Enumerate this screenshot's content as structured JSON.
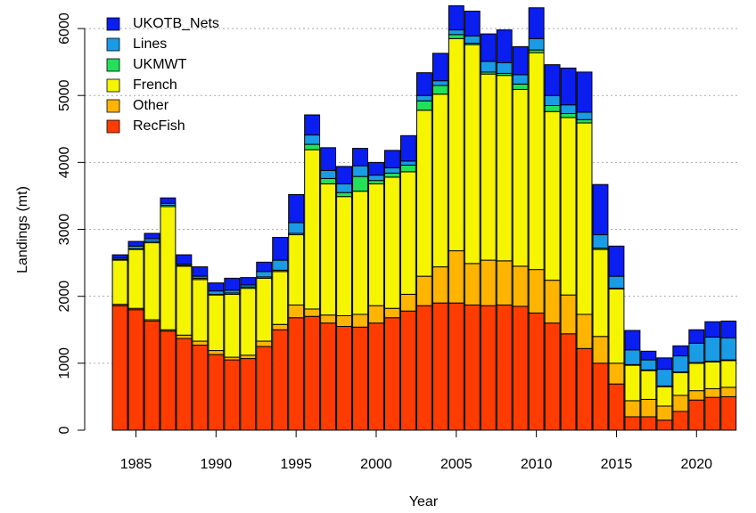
{
  "chart_data": {
    "type": "stacked_bar",
    "x_label": "Year",
    "y_label": "Landings (mt)",
    "x": [
      1984,
      1985,
      1986,
      1987,
      1988,
      1989,
      1990,
      1991,
      1992,
      1993,
      1994,
      1995,
      1996,
      1997,
      1998,
      1999,
      2000,
      2001,
      2002,
      2003,
      2004,
      2005,
      2006,
      2007,
      2008,
      2009,
      2010,
      2011,
      2012,
      2013,
      2014,
      2015,
      2016,
      2017,
      2018,
      2019,
      2020,
      2021,
      2022
    ],
    "xlim": [
      1981.8,
      2022.6
    ],
    "xticks": [
      1985,
      1990,
      1995,
      2000,
      2005,
      2010,
      2015,
      2020
    ],
    "ylim": [
      0,
      6360
    ],
    "yticks": [
      0,
      1000,
      2000,
      3000,
      4000,
      5000,
      6000
    ],
    "grid": true,
    "legend": "top-left",
    "series": [
      {
        "name": "RecFish",
        "color": "#ff3c00",
        "values": [
          1860,
          1800,
          1630,
          1480,
          1370,
          1270,
          1130,
          1050,
          1070,
          1250,
          1500,
          1680,
          1700,
          1600,
          1550,
          1540,
          1600,
          1680,
          1780,
          1860,
          1900,
          1900,
          1870,
          1860,
          1870,
          1850,
          1750,
          1600,
          1440,
          1220,
          1000,
          690,
          200,
          200,
          150,
          280,
          450,
          490,
          500
        ]
      },
      {
        "name": "Other",
        "color": "#ffb400",
        "values": [
          20,
          20,
          20,
          20,
          50,
          60,
          60,
          40,
          50,
          80,
          80,
          190,
          110,
          120,
          160,
          190,
          260,
          140,
          250,
          440,
          540,
          780,
          620,
          680,
          660,
          600,
          650,
          640,
          580,
          510,
          400,
          310,
          240,
          260,
          210,
          240,
          140,
          130,
          140
        ]
      },
      {
        "name": "French",
        "color": "#f5f500",
        "values": [
          660,
          880,
          1150,
          1840,
          1030,
          920,
          830,
          940,
          1000,
          940,
          790,
          1050,
          2380,
          1960,
          1780,
          1840,
          1820,
          1960,
          1830,
          2480,
          2580,
          3170,
          3270,
          2780,
          2770,
          2640,
          3240,
          2520,
          2650,
          2860,
          1300,
          1110,
          530,
          430,
          290,
          340,
          410,
          400,
          400
        ]
      },
      {
        "name": "UKMWT",
        "color": "#22e05a",
        "values": [
          10,
          10,
          20,
          20,
          10,
          20,
          10,
          20,
          20,
          20,
          20,
          20,
          80,
          80,
          60,
          220,
          50,
          60,
          100,
          140,
          130,
          60,
          20,
          30,
          30,
          80,
          40,
          90,
          60,
          50,
          20,
          10,
          10,
          10,
          10,
          10,
          10,
          10,
          10
        ]
      },
      {
        "name": "Lines",
        "color": "#1a9be6",
        "values": [
          20,
          40,
          40,
          30,
          20,
          30,
          50,
          40,
          30,
          80,
          150,
          160,
          140,
          120,
          130,
          160,
          80,
          80,
          60,
          80,
          70,
          70,
          110,
          160,
          160,
          140,
          170,
          150,
          130,
          110,
          200,
          180,
          220,
          150,
          250,
          240,
          290,
          360,
          330
        ]
      },
      {
        "name": "UKOTB_Nets",
        "color": "#0a1ef0",
        "values": [
          50,
          70,
          80,
          80,
          140,
          140,
          120,
          180,
          110,
          140,
          340,
          420,
          300,
          340,
          260,
          260,
          190,
          260,
          380,
          340,
          410,
          360,
          370,
          410,
          490,
          420,
          460,
          460,
          550,
          600,
          750,
          450,
          290,
          130,
          170,
          150,
          200,
          230,
          250
        ]
      }
    ]
  }
}
